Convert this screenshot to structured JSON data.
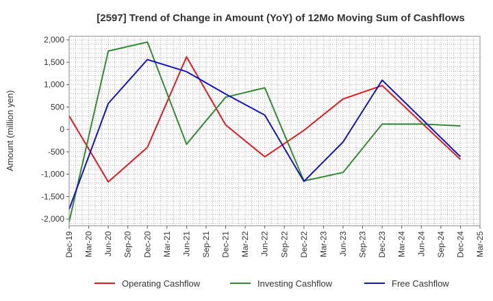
{
  "chart_data": {
    "type": "line",
    "title": "[2597]  Trend of Change in Amount (YoY) of 12Mo Moving Sum of Cashflows",
    "ylabel": "Amount (million yen)",
    "xlabel": "",
    "ylim": [
      -2150,
      2080
    ],
    "yticks": [
      2000,
      1500,
      1000,
      500,
      0,
      -500,
      -1000,
      -1500,
      -2000
    ],
    "ytick_labels": [
      "2,000",
      "1,500",
      "1,000",
      "500",
      "0",
      "-500",
      "-1,000",
      "-1,500",
      "-2,000"
    ],
    "categories": [
      "Dec-19",
      "Mar-20",
      "Jun-20",
      "Sep-20",
      "Dec-20",
      "Mar-21",
      "Jun-21",
      "Sep-21",
      "Dec-21",
      "Mar-22",
      "Jun-22",
      "Sep-22",
      "Dec-22",
      "Mar-23",
      "Jun-23",
      "Sep-23",
      "Dec-23",
      "Mar-24",
      "Jun-24",
      "Sep-24",
      "Dec-24",
      "Mar-25"
    ],
    "grid": true,
    "legend_position": "bottom",
    "series": [
      {
        "name": "Operating Cashflow",
        "color": "#e8151b",
        "points": [
          [
            0,
            300
          ],
          [
            2,
            -1170
          ],
          [
            4,
            -400
          ],
          [
            6,
            1620
          ],
          [
            8,
            100
          ],
          [
            10,
            -610
          ],
          [
            12,
            -20
          ],
          [
            14,
            680
          ],
          [
            16,
            980
          ],
          [
            20,
            -670
          ]
        ]
      },
      {
        "name": "Investing Cashflow",
        "color": "#2e8b2e",
        "points": [
          [
            0,
            -2060
          ],
          [
            2,
            1750
          ],
          [
            4,
            1950
          ],
          [
            6,
            -330
          ],
          [
            8,
            720
          ],
          [
            10,
            930
          ],
          [
            12,
            -1150
          ],
          [
            14,
            -960
          ],
          [
            16,
            120
          ],
          [
            18,
            120
          ],
          [
            20,
            80
          ]
        ]
      },
      {
        "name": "Free Cashflow",
        "color": "#1010d0",
        "points": [
          [
            0,
            -1780
          ],
          [
            2,
            580
          ],
          [
            4,
            1560
          ],
          [
            6,
            1290
          ],
          [
            8,
            790
          ],
          [
            10,
            320
          ],
          [
            12,
            -1160
          ],
          [
            14,
            -280
          ],
          [
            16,
            1100
          ],
          [
            20,
            -610
          ]
        ]
      }
    ]
  }
}
